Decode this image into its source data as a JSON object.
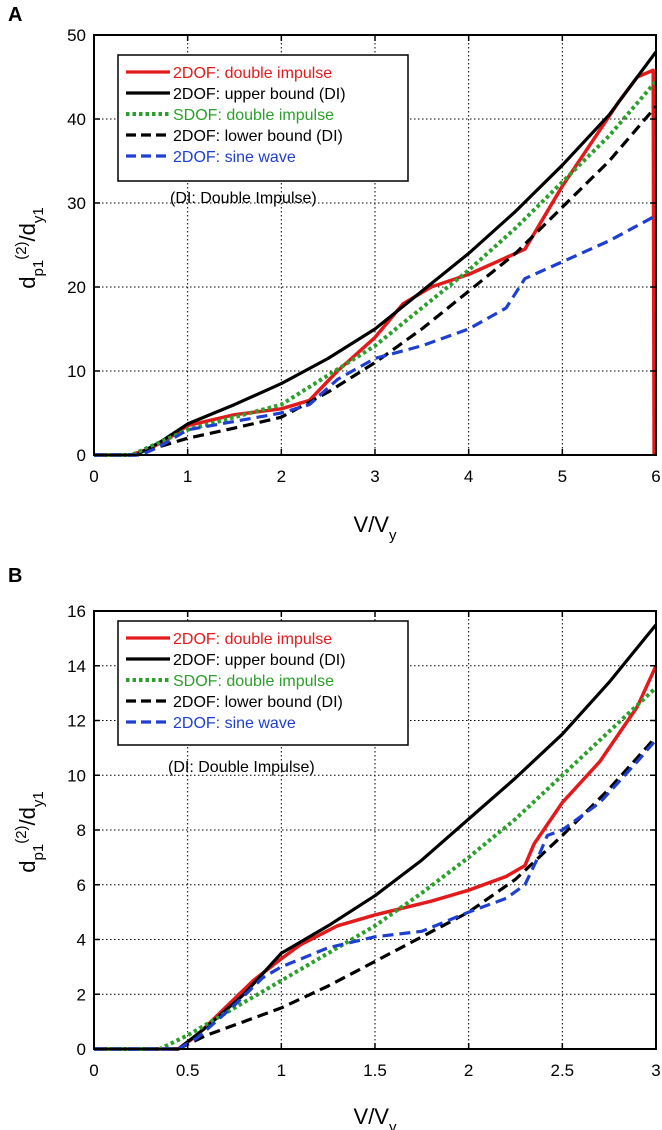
{
  "chart_data": [
    {
      "panel": "A",
      "type": "line",
      "xlabel": "V/V_y",
      "ylabel": "d_p1^(2)/d_y1",
      "xlim": [
        0,
        6
      ],
      "ylim": [
        0,
        50
      ],
      "xticks": [
        0,
        1,
        2,
        3,
        4,
        5,
        6
      ],
      "yticks": [
        0,
        10,
        20,
        30,
        40,
        50
      ],
      "grid": true,
      "legend_position": "top-left",
      "annotation": "(DI: Double Impulse)",
      "series": [
        {
          "name": "2DOF: double impulse",
          "color": "#e31a1c",
          "dash": "solid",
          "points": [
            [
              0,
              0
            ],
            [
              0.4,
              0
            ],
            [
              0.6,
              0.8
            ],
            [
              0.8,
              2
            ],
            [
              1,
              3.5
            ],
            [
              1.5,
              4.8
            ],
            [
              2,
              5.5
            ],
            [
              2.3,
              6.5
            ],
            [
              2.6,
              10
            ],
            [
              3,
              14
            ],
            [
              3.3,
              18
            ],
            [
              3.6,
              20
            ],
            [
              4,
              21.5
            ],
            [
              4.3,
              23
            ],
            [
              4.6,
              24.5
            ],
            [
              5,
              32
            ],
            [
              5.3,
              37
            ],
            [
              5.6,
              42
            ],
            [
              5.8,
              45
            ],
            [
              5.97,
              45.8
            ],
            [
              5.98,
              0
            ]
          ]
        },
        {
          "name": "2DOF: upper bound (DI)",
          "color": "#000000",
          "dash": "solid",
          "points": [
            [
              0,
              0
            ],
            [
              0.45,
              0
            ],
            [
              0.7,
              1.5
            ],
            [
              1,
              3.7
            ],
            [
              1.5,
              6
            ],
            [
              2,
              8.5
            ],
            [
              2.5,
              11.5
            ],
            [
              3,
              15
            ],
            [
              3.5,
              19.5
            ],
            [
              4,
              24
            ],
            [
              4.5,
              29
            ],
            [
              5,
              34.5
            ],
            [
              5.5,
              40.5
            ],
            [
              6,
              48
            ]
          ]
        },
        {
          "name": "SDOF: double impulse",
          "color": "#2ca02c",
          "dash": "dot",
          "points": [
            [
              0,
              0
            ],
            [
              0.4,
              0
            ],
            [
              0.6,
              1
            ],
            [
              1,
              3
            ],
            [
              1.5,
              4.5
            ],
            [
              2,
              6
            ],
            [
              2.5,
              9.5
            ],
            [
              3,
              13
            ],
            [
              3.5,
              17.5
            ],
            [
              4,
              22
            ],
            [
              4.5,
              27
            ],
            [
              5,
              32.5
            ],
            [
              5.5,
              38
            ],
            [
              6,
              44.5
            ]
          ]
        },
        {
          "name": "2DOF: lower bound (DI)",
          "color": "#000000",
          "dash": "dash",
          "points": [
            [
              0,
              0
            ],
            [
              0.45,
              0
            ],
            [
              0.7,
              1
            ],
            [
              1,
              2
            ],
            [
              1.5,
              3.2
            ],
            [
              2,
              4.5
            ],
            [
              2.5,
              7.5
            ],
            [
              3,
              11
            ],
            [
              3.5,
              15
            ],
            [
              4,
              19.5
            ],
            [
              4.5,
              24
            ],
            [
              5,
              29.5
            ],
            [
              5.5,
              35
            ],
            [
              6,
              41.5
            ]
          ]
        },
        {
          "name": "2DOF: sine wave",
          "color": "#1f3fd0",
          "dash": "dash",
          "points": [
            [
              0,
              0
            ],
            [
              0.5,
              0
            ],
            [
              0.7,
              1
            ],
            [
              1,
              3
            ],
            [
              1.5,
              4
            ],
            [
              2,
              5
            ],
            [
              2.3,
              6
            ],
            [
              2.6,
              9
            ],
            [
              3,
              11.5
            ],
            [
              3.5,
              13
            ],
            [
              4,
              15
            ],
            [
              4.4,
              17.5
            ],
            [
              4.6,
              21
            ],
            [
              5,
              23
            ],
            [
              5.5,
              25.5
            ],
            [
              6,
              28.5
            ]
          ]
        }
      ]
    },
    {
      "panel": "B",
      "type": "line",
      "xlabel": "V/V_y",
      "ylabel": "d_p1^(2)/d_y1",
      "xlim": [
        0,
        3
      ],
      "ylim": [
        0,
        16
      ],
      "xticks": [
        0,
        0.5,
        1,
        1.5,
        2,
        2.5,
        3
      ],
      "yticks": [
        0,
        2,
        4,
        6,
        8,
        10,
        12,
        14,
        16
      ],
      "grid": true,
      "legend_position": "top-left",
      "annotation": "(DI: Double Impulse)",
      "series": [
        {
          "name": "2DOF: double impulse",
          "color": "#e31a1c",
          "dash": "solid",
          "points": [
            [
              0,
              0
            ],
            [
              0.45,
              0
            ],
            [
              0.55,
              0.5
            ],
            [
              0.7,
              1.5
            ],
            [
              0.85,
              2.5
            ],
            [
              1,
              3.3
            ],
            [
              1.1,
              3.8
            ],
            [
              1.3,
              4.5
            ],
            [
              1.5,
              4.9
            ],
            [
              1.8,
              5.4
            ],
            [
              2,
              5.8
            ],
            [
              2.2,
              6.3
            ],
            [
              2.3,
              6.7
            ],
            [
              2.35,
              7.5
            ],
            [
              2.4,
              8
            ],
            [
              2.5,
              9
            ],
            [
              2.7,
              10.5
            ],
            [
              2.9,
              12.5
            ],
            [
              3,
              14
            ]
          ]
        },
        {
          "name": "2DOF: upper bound (DI)",
          "color": "#000000",
          "dash": "solid",
          "points": [
            [
              0,
              0
            ],
            [
              0.45,
              0
            ],
            [
              0.6,
              0.8
            ],
            [
              0.8,
              2
            ],
            [
              1,
              3.5
            ],
            [
              1.25,
              4.5
            ],
            [
              1.5,
              5.6
            ],
            [
              1.75,
              6.9
            ],
            [
              2,
              8.4
            ],
            [
              2.25,
              9.9
            ],
            [
              2.5,
              11.5
            ],
            [
              2.75,
              13.4
            ],
            [
              3,
              15.5
            ]
          ]
        },
        {
          "name": "SDOF: double impulse",
          "color": "#2ca02c",
          "dash": "dot",
          "points": [
            [
              0,
              0
            ],
            [
              0.35,
              0
            ],
            [
              0.5,
              0.5
            ],
            [
              0.75,
              1.5
            ],
            [
              1,
              2.5
            ],
            [
              1.25,
              3.5
            ],
            [
              1.5,
              4.5
            ],
            [
              1.75,
              5.7
            ],
            [
              2,
              7
            ],
            [
              2.25,
              8.4
            ],
            [
              2.5,
              10
            ],
            [
              2.75,
              11.6
            ],
            [
              3,
              13.2
            ]
          ]
        },
        {
          "name": "2DOF: lower bound (DI)",
          "color": "#000000",
          "dash": "dash",
          "points": [
            [
              0,
              0
            ],
            [
              0.45,
              0
            ],
            [
              0.6,
              0.5
            ],
            [
              0.8,
              1
            ],
            [
              1,
              1.5
            ],
            [
              1.25,
              2.3
            ],
            [
              1.5,
              3.2
            ],
            [
              1.75,
              4.1
            ],
            [
              2,
              5
            ],
            [
              2.25,
              6.2
            ],
            [
              2.5,
              7.8
            ],
            [
              2.75,
              9.5
            ],
            [
              3,
              11.4
            ]
          ]
        },
        {
          "name": "2DOF: sine wave",
          "color": "#1f3fd0",
          "dash": "dash",
          "points": [
            [
              0,
              0
            ],
            [
              0.45,
              0
            ],
            [
              0.55,
              0.4
            ],
            [
              0.75,
              1.6
            ],
            [
              0.9,
              2.6
            ],
            [
              1,
              3
            ],
            [
              1.25,
              3.7
            ],
            [
              1.5,
              4.1
            ],
            [
              1.75,
              4.3
            ],
            [
              2,
              5
            ],
            [
              2.2,
              5.5
            ],
            [
              2.3,
              6
            ],
            [
              2.37,
              7
            ],
            [
              2.42,
              7.8
            ],
            [
              2.5,
              8
            ],
            [
              2.7,
              9
            ],
            [
              2.9,
              10.5
            ],
            [
              3,
              11.3
            ]
          ]
        }
      ]
    }
  ]
}
